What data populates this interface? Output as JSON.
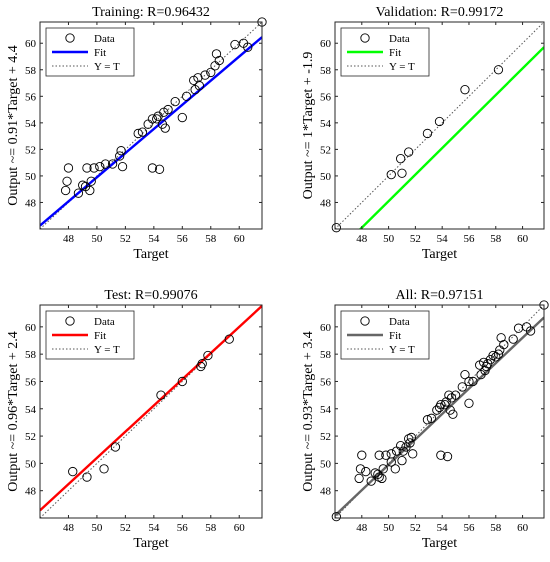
{
  "figure": {
    "x_ticks": [
      "48",
      "50",
      "52",
      "54",
      "56",
      "58",
      "60"
    ],
    "y_ticks": [
      "48",
      "50",
      "52",
      "54",
      "56",
      "58",
      "60"
    ],
    "legend_labels": {
      "data": "Data",
      "fit": "Fit",
      "identity": "Y = T"
    }
  },
  "chart_data": [
    {
      "type": "scatter",
      "title": "Training: R=0.96432",
      "xlabel": "Target",
      "ylabel": "Output ~= 0.91*Target + 4.4",
      "xlim": [
        46,
        61.6
      ],
      "ylim": [
        46,
        61.6
      ],
      "xticks": [
        48,
        50,
        52,
        54,
        56,
        58,
        60
      ],
      "yticks": [
        48,
        50,
        52,
        54,
        56,
        58,
        60
      ],
      "grid": false,
      "legend_position": "top-left",
      "fit_color": "#0000ff",
      "fit": {
        "slope": 0.91,
        "intercept": 4.4
      },
      "series": [
        {
          "name": "Data",
          "points": [
            [
              47.8,
              48.9
            ],
            [
              47.9,
              49.6
            ],
            [
              48.0,
              50.6
            ],
            [
              48.7,
              48.7
            ],
            [
              49.0,
              49.3
            ],
            [
              49.2,
              49.2
            ],
            [
              49.3,
              50.6
            ],
            [
              49.5,
              48.9
            ],
            [
              49.6,
              49.6
            ],
            [
              49.8,
              50.6
            ],
            [
              50.2,
              50.7
            ],
            [
              50.6,
              50.9
            ],
            [
              51.1,
              50.9
            ],
            [
              51.6,
              51.5
            ],
            [
              51.7,
              51.9
            ],
            [
              51.8,
              50.7
            ],
            [
              52.9,
              53.2
            ],
            [
              53.2,
              53.3
            ],
            [
              53.6,
              53.9
            ],
            [
              53.9,
              54.3
            ],
            [
              53.9,
              50.6
            ],
            [
              54.2,
              54.3
            ],
            [
              54.3,
              54.5
            ],
            [
              54.4,
              50.5
            ],
            [
              54.6,
              53.9
            ],
            [
              54.7,
              54.8
            ],
            [
              54.8,
              53.6
            ],
            [
              55.0,
              55.0
            ],
            [
              55.5,
              55.6
            ],
            [
              56.0,
              54.4
            ],
            [
              56.3,
              56.0
            ],
            [
              56.8,
              57.2
            ],
            [
              56.9,
              56.5
            ],
            [
              57.1,
              57.4
            ],
            [
              57.2,
              56.8
            ],
            [
              57.6,
              57.6
            ],
            [
              58.0,
              57.8
            ],
            [
              58.3,
              58.3
            ],
            [
              58.4,
              59.2
            ],
            [
              58.6,
              58.7
            ],
            [
              59.7,
              59.9
            ],
            [
              60.3,
              60.0
            ],
            [
              60.6,
              59.7
            ],
            [
              61.6,
              61.6
            ]
          ]
        }
      ]
    },
    {
      "type": "scatter",
      "title": "Validation: R=0.99172",
      "xlabel": "Target",
      "ylabel": "Output ~= 1*Target + -1.9",
      "xlim": [
        46,
        61.6
      ],
      "ylim": [
        46,
        61.6
      ],
      "xticks": [
        48,
        50,
        52,
        54,
        56,
        58,
        60
      ],
      "yticks": [
        48,
        50,
        52,
        54,
        56,
        58,
        60
      ],
      "grid": false,
      "legend_position": "top-left",
      "fit_color": "#00ff00",
      "fit": {
        "slope": 1.0,
        "intercept": -1.9
      },
      "series": [
        {
          "name": "Data",
          "points": [
            [
              46.1,
              46.1
            ],
            [
              50.2,
              50.1
            ],
            [
              50.9,
              51.3
            ],
            [
              51.0,
              50.2
            ],
            [
              51.5,
              51.8
            ],
            [
              52.9,
              53.2
            ],
            [
              53.8,
              54.1
            ],
            [
              55.7,
              56.5
            ],
            [
              58.2,
              58.0
            ]
          ]
        }
      ]
    },
    {
      "type": "scatter",
      "title": "Test: R=0.99076",
      "xlabel": "Target",
      "ylabel": "Output ~= 0.96*Target + 2.4",
      "xlim": [
        46,
        61.6
      ],
      "ylim": [
        46,
        61.6
      ],
      "xticks": [
        48,
        50,
        52,
        54,
        56,
        58,
        60
      ],
      "yticks": [
        48,
        50,
        52,
        54,
        56,
        58,
        60
      ],
      "grid": false,
      "legend_position": "top-left",
      "fit_color": "#ff0000",
      "fit": {
        "slope": 0.96,
        "intercept": 2.4
      },
      "series": [
        {
          "name": "Data",
          "points": [
            [
              48.3,
              49.4
            ],
            [
              49.3,
              49.0
            ],
            [
              50.5,
              49.6
            ],
            [
              51.3,
              51.2
            ],
            [
              54.5,
              55.0
            ],
            [
              56.0,
              56.0
            ],
            [
              57.3,
              57.1
            ],
            [
              57.4,
              57.3
            ],
            [
              57.8,
              57.9
            ],
            [
              59.3,
              59.1
            ]
          ]
        }
      ]
    },
    {
      "type": "scatter",
      "title": "All: R=0.97151",
      "xlabel": "Target",
      "ylabel": "Output ~= 0.93*Target + 3.4",
      "xlim": [
        46,
        61.6
      ],
      "ylim": [
        46,
        61.6
      ],
      "xticks": [
        48,
        50,
        52,
        54,
        56,
        58,
        60
      ],
      "yticks": [
        48,
        50,
        52,
        54,
        56,
        58,
        60
      ],
      "grid": false,
      "legend_position": "top-left",
      "fit_color": "#666666",
      "fit": {
        "slope": 0.93,
        "intercept": 3.4
      },
      "series": [
        {
          "name": "Data",
          "points": [
            [
              46.1,
              46.1
            ],
            [
              47.8,
              48.9
            ],
            [
              47.9,
              49.6
            ],
            [
              48.0,
              50.6
            ],
            [
              48.3,
              49.4
            ],
            [
              48.7,
              48.7
            ],
            [
              49.0,
              49.3
            ],
            [
              49.2,
              49.2
            ],
            [
              49.3,
              50.6
            ],
            [
              49.3,
              49.0
            ],
            [
              49.5,
              48.9
            ],
            [
              49.6,
              49.6
            ],
            [
              49.8,
              50.6
            ],
            [
              50.2,
              50.7
            ],
            [
              50.2,
              50.1
            ],
            [
              50.5,
              49.6
            ],
            [
              50.6,
              50.9
            ],
            [
              50.9,
              51.3
            ],
            [
              51.0,
              50.2
            ],
            [
              51.1,
              50.9
            ],
            [
              51.3,
              51.2
            ],
            [
              51.5,
              51.8
            ],
            [
              51.6,
              51.5
            ],
            [
              51.7,
              51.9
            ],
            [
              51.8,
              50.7
            ],
            [
              52.9,
              53.2
            ],
            [
              53.2,
              53.3
            ],
            [
              53.6,
              53.9
            ],
            [
              53.8,
              54.1
            ],
            [
              53.9,
              54.3
            ],
            [
              53.9,
              50.6
            ],
            [
              54.2,
              54.3
            ],
            [
              54.3,
              54.5
            ],
            [
              54.4,
              50.5
            ],
            [
              54.5,
              55.0
            ],
            [
              54.6,
              53.9
            ],
            [
              54.7,
              54.8
            ],
            [
              54.8,
              53.6
            ],
            [
              55.0,
              55.0
            ],
            [
              55.5,
              55.6
            ],
            [
              55.7,
              56.5
            ],
            [
              56.0,
              54.4
            ],
            [
              56.0,
              56.0
            ],
            [
              56.3,
              56.0
            ],
            [
              56.8,
              57.2
            ],
            [
              56.9,
              56.5
            ],
            [
              57.1,
              57.4
            ],
            [
              57.2,
              56.8
            ],
            [
              57.3,
              57.1
            ],
            [
              57.4,
              57.3
            ],
            [
              57.6,
              57.6
            ],
            [
              57.8,
              57.9
            ],
            [
              58.0,
              57.8
            ],
            [
              58.2,
              58.0
            ],
            [
              58.3,
              58.3
            ],
            [
              58.4,
              59.2
            ],
            [
              58.6,
              58.7
            ],
            [
              59.3,
              59.1
            ],
            [
              59.7,
              59.9
            ],
            [
              60.3,
              60.0
            ],
            [
              60.6,
              59.7
            ],
            [
              61.6,
              61.6
            ]
          ]
        }
      ]
    }
  ]
}
